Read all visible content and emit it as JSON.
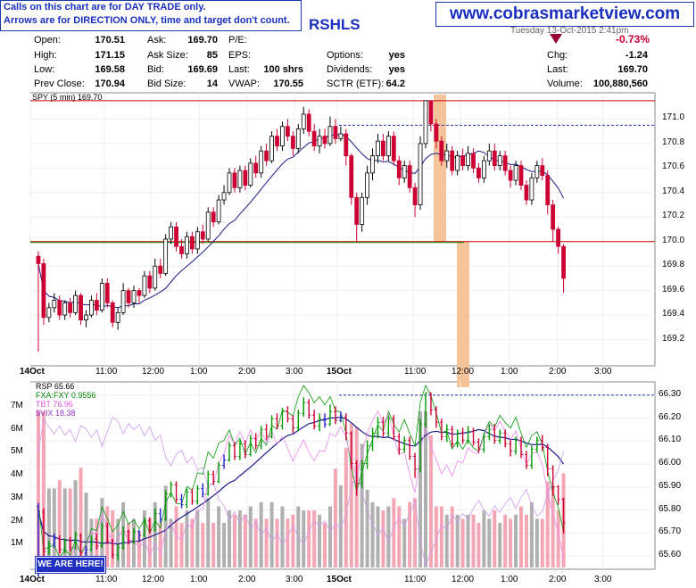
{
  "notice": {
    "line1": "Calls on this chart are for DAY TRADE only.",
    "line2": "Arrows are for DIRECTION ONLY, time and target don't count."
  },
  "brand": "www.cobrasmarketview.com",
  "symbol": "RSHLS",
  "date_text": "Tuesday 13-Oct-2015 2:41pm",
  "quote": {
    "open_label": "Open:",
    "open": "170.51",
    "high_label": "High:",
    "high": "171.15",
    "low_label": "Low:",
    "low": "169.58",
    "prev_label": "Prev Close:",
    "prev": "170.94",
    "ask_label": "Ask:",
    "ask": "169.70",
    "asksize_label": "Ask Size:",
    "asksize": "85",
    "bid_label": "Bid:",
    "bid": "169.69",
    "bidsize_label": "Bid Size:",
    "bidsize": "14",
    "pe_label": "P/E:",
    "eps_label": "EPS:",
    "lastvol_label": "Last:",
    "lastvol": "100 shrs",
    "vwap_label": "VWAP:",
    "vwap": "170.55",
    "options_label": "Options:",
    "options": "yes",
    "dividends_label": "Dividends:",
    "dividends": "yes",
    "sctr_label": "SCTR (ETF):",
    "sctr": "64.2",
    "change_pct": "-0.73%",
    "chg_label": "Chg:",
    "chg": "-1.24",
    "last_label": "Last:",
    "last": "169.70",
    "volume_label": "Volume:",
    "volume": "100,880,560"
  },
  "here_label": "WE ARE HERE!",
  "colors": {
    "up": "#000000",
    "down": "#cc0033",
    "ma": "#1a1a8a",
    "hline": "#cc0000",
    "support": "#008800",
    "highlight": "#f5c49a",
    "rsp_up": "#009900",
    "rsp_flat": "#2222cc",
    "fxa": "#009900",
    "tbt": "#ee88ee",
    "vix": "#9933cc",
    "vol_down": "#f4a6b4",
    "vol_up": "#b0b0b0"
  },
  "chart_data": [
    {
      "type": "candlestick",
      "legend": "SPY (5 min) 169.70",
      "ylim": [
        169.0,
        171.2
      ],
      "yticks": [
        "171.0",
        "170.8",
        "170.6",
        "170.4",
        "170.2",
        "170.0",
        "169.8",
        "169.6",
        "169.4",
        "169.2"
      ],
      "xticks": [
        "14Oct",
        "11:00",
        "12:00",
        "1:00",
        "2:00",
        "3:00",
        "15Oct",
        "11:00",
        "12:00",
        "1:00",
        "2:00",
        "3:00"
      ],
      "lines": {
        "resistance": 171.15,
        "mid": 170.0,
        "support": 170.0,
        "dashed": 170.95
      },
      "bars": [
        [
          169.88,
          169.82,
          169.92,
          169.1
        ],
        [
          169.82,
          169.38,
          169.86,
          169.32
        ],
        [
          169.38,
          169.46,
          169.5,
          169.34
        ],
        [
          169.46,
          169.52,
          169.58,
          169.42
        ],
        [
          169.52,
          169.4,
          169.56,
          169.36
        ],
        [
          169.4,
          169.5,
          169.52,
          169.36
        ],
        [
          169.5,
          169.42,
          169.54,
          169.38
        ],
        [
          169.42,
          169.56,
          169.6,
          169.4
        ],
        [
          169.56,
          169.36,
          169.58,
          169.32
        ],
        [
          169.36,
          169.4,
          169.44,
          169.3
        ],
        [
          169.4,
          169.52,
          169.56,
          169.38
        ],
        [
          169.52,
          169.44,
          169.58,
          169.4
        ],
        [
          169.44,
          169.66,
          169.7,
          169.42
        ],
        [
          169.66,
          169.5,
          169.7,
          169.46
        ],
        [
          169.5,
          169.34,
          169.52,
          169.3
        ],
        [
          169.34,
          169.42,
          169.46,
          169.28
        ],
        [
          169.42,
          169.6,
          169.66,
          169.4
        ],
        [
          169.6,
          169.5,
          169.62,
          169.46
        ],
        [
          169.5,
          169.6,
          169.64,
          169.46
        ],
        [
          169.6,
          169.56,
          169.62,
          169.5
        ],
        [
          169.56,
          169.72,
          169.76,
          169.54
        ],
        [
          169.72,
          169.62,
          169.76,
          169.58
        ],
        [
          169.62,
          169.8,
          169.86,
          169.6
        ],
        [
          169.8,
          169.74,
          169.86,
          169.7
        ],
        [
          169.74,
          170.02,
          170.06,
          169.72
        ],
        [
          170.02,
          170.12,
          170.16,
          169.98
        ],
        [
          170.12,
          169.96,
          170.16,
          169.92
        ],
        [
          169.96,
          169.9,
          170.02,
          169.86
        ],
        [
          169.9,
          170.04,
          170.08,
          169.86
        ],
        [
          170.04,
          169.94,
          170.08,
          169.9
        ],
        [
          169.94,
          170.08,
          170.12,
          169.9
        ],
        [
          170.08,
          170.02,
          170.14,
          169.98
        ],
        [
          170.02,
          170.24,
          170.28,
          170.0
        ],
        [
          170.24,
          170.16,
          170.28,
          170.12
        ],
        [
          170.16,
          170.34,
          170.38,
          170.14
        ],
        [
          170.34,
          170.4,
          170.46,
          170.3
        ],
        [
          170.4,
          170.56,
          170.6,
          170.38
        ],
        [
          170.56,
          170.44,
          170.6,
          170.4
        ],
        [
          170.44,
          170.58,
          170.62,
          170.4
        ],
        [
          170.58,
          170.46,
          170.62,
          170.42
        ],
        [
          170.46,
          170.64,
          170.68,
          170.44
        ],
        [
          170.64,
          170.56,
          170.7,
          170.52
        ],
        [
          170.56,
          170.74,
          170.78,
          170.52
        ],
        [
          170.74,
          170.66,
          170.8,
          170.62
        ],
        [
          170.66,
          170.86,
          170.9,
          170.64
        ],
        [
          170.86,
          170.78,
          170.92,
          170.74
        ],
        [
          170.78,
          170.94,
          170.98,
          170.74
        ],
        [
          170.94,
          170.86,
          171.0,
          170.82
        ],
        [
          170.86,
          170.76,
          170.9,
          170.7
        ],
        [
          170.76,
          170.92,
          170.96,
          170.72
        ],
        [
          170.92,
          171.04,
          171.1,
          170.88
        ],
        [
          171.04,
          170.9,
          171.08,
          170.86
        ],
        [
          170.9,
          170.78,
          170.96,
          170.74
        ],
        [
          170.78,
          170.86,
          170.92,
          170.72
        ],
        [
          170.86,
          170.8,
          170.92,
          170.76
        ],
        [
          170.8,
          170.94,
          171.02,
          170.78
        ],
        [
          170.94,
          170.84,
          171.0,
          170.8
        ],
        [
          170.84,
          170.88,
          170.94,
          170.82
        ],
        [
          170.88,
          170.7,
          170.92,
          170.62
        ],
        [
          170.7,
          170.36,
          170.72,
          170.3
        ],
        [
          170.36,
          170.14,
          170.4,
          170.0
        ],
        [
          170.14,
          170.36,
          170.4,
          170.08
        ],
        [
          170.36,
          170.56,
          170.62,
          170.3
        ],
        [
          170.56,
          170.7,
          170.76,
          170.5
        ],
        [
          170.7,
          170.82,
          170.88,
          170.64
        ],
        [
          170.82,
          170.7,
          170.88,
          170.66
        ],
        [
          170.7,
          170.86,
          170.9,
          170.66
        ],
        [
          170.86,
          170.66,
          170.9,
          170.62
        ],
        [
          170.66,
          170.52,
          170.7,
          170.46
        ],
        [
          170.52,
          170.62,
          170.66,
          170.48
        ],
        [
          170.62,
          170.44,
          170.66,
          170.4
        ],
        [
          170.44,
          170.3,
          170.48,
          170.2
        ],
        [
          170.3,
          170.8,
          170.86,
          170.26
        ],
        [
          170.8,
          171.15,
          171.15,
          170.76
        ],
        [
          171.15,
          170.96,
          171.15,
          170.9
        ],
        [
          170.96,
          170.82,
          171.0,
          170.76
        ],
        [
          170.82,
          170.66,
          170.86,
          170.62
        ],
        [
          170.66,
          170.74,
          170.8,
          170.6
        ],
        [
          170.74,
          170.58,
          170.78,
          170.54
        ],
        [
          170.58,
          170.7,
          170.74,
          170.54
        ],
        [
          170.7,
          170.62,
          170.76,
          170.58
        ],
        [
          170.62,
          170.72,
          170.78,
          170.58
        ],
        [
          170.72,
          170.6,
          170.76,
          170.56
        ],
        [
          170.6,
          170.52,
          170.64,
          170.48
        ],
        [
          170.52,
          170.66,
          170.7,
          170.48
        ],
        [
          170.66,
          170.74,
          170.8,
          170.62
        ],
        [
          170.74,
          170.62,
          170.8,
          170.58
        ],
        [
          170.62,
          170.7,
          170.74,
          170.58
        ],
        [
          170.7,
          170.58,
          170.74,
          170.54
        ],
        [
          170.58,
          170.5,
          170.62,
          170.44
        ],
        [
          170.5,
          170.62,
          170.66,
          170.46
        ],
        [
          170.62,
          170.46,
          170.66,
          170.42
        ],
        [
          170.46,
          170.34,
          170.5,
          170.3
        ],
        [
          170.34,
          170.52,
          170.56,
          170.3
        ],
        [
          170.52,
          170.62,
          170.66,
          170.48
        ],
        [
          170.62,
          170.54,
          170.68,
          170.5
        ],
        [
          170.54,
          170.3,
          170.58,
          170.22
        ],
        [
          170.3,
          170.1,
          170.34,
          170.0
        ],
        [
          170.1,
          169.96,
          170.12,
          169.9
        ],
        [
          169.96,
          169.7,
          169.98,
          169.58
        ]
      ]
    },
    {
      "type": "line",
      "legends": [
        "RSP 65.66",
        "FXA:FXY 0.9556",
        "TBT 76.96",
        "$VIX 18.38"
      ],
      "ylim": [
        65.55,
        66.35
      ],
      "yticks": [
        "66.30",
        "66.20",
        "66.10",
        "66.00",
        "65.90",
        "65.80",
        "65.70",
        "65.60"
      ],
      "volume_ticks": [
        "7M",
        "6M",
        "5M",
        "4M",
        "3M",
        "2M",
        "1M"
      ],
      "xticks": [
        "14Oct",
        "11:00",
        "12:00",
        "1:00",
        "2:00",
        "3:00",
        "15Oct",
        "11:00",
        "12:00",
        "1:00",
        "2:00",
        "3:00"
      ]
    }
  ]
}
